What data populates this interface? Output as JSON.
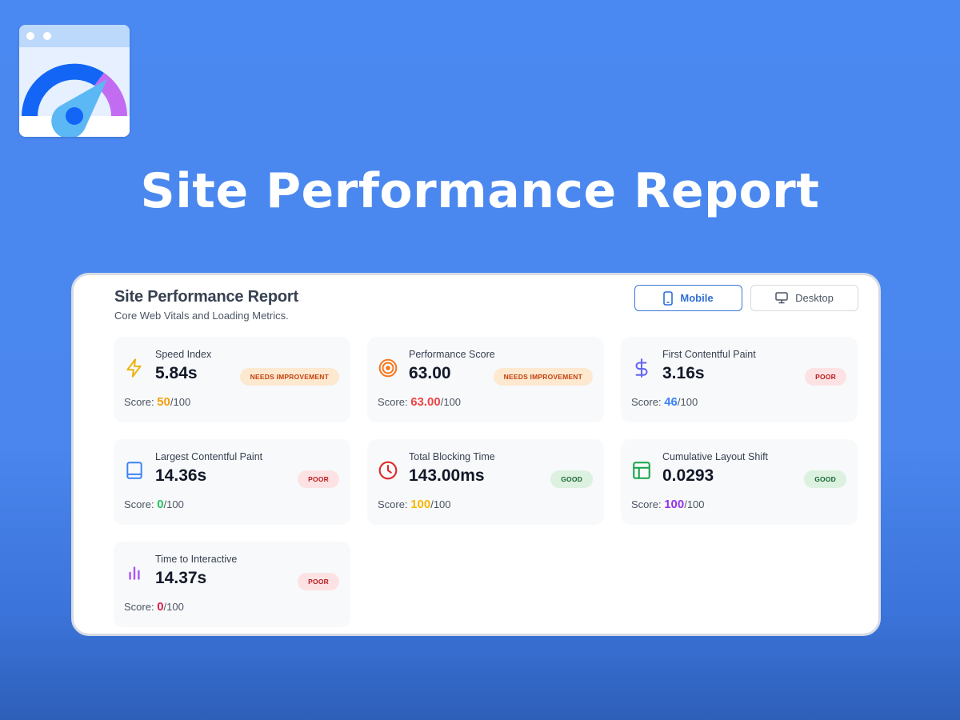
{
  "hero": {
    "title": "Site Performance Report"
  },
  "card": {
    "title": "Site Performance Report",
    "subtitle": "Core Web Vitals and Loading Metrics."
  },
  "toggles": {
    "mobile_label": "Mobile",
    "desktop_label": "Desktop",
    "selected": "Mobile"
  },
  "colors": {
    "accent": "#2f6fd6",
    "score_orange": "#f59e0b",
    "score_red": "#ef4444",
    "score_blue": "#3b82f6",
    "score_green": "#22c55e",
    "score_amber": "#f5b800",
    "score_purple": "#9333ea",
    "score_crimson": "#e11d48"
  },
  "metrics": [
    {
      "name": "Speed Index",
      "value": "5.84s",
      "status": "NEEDS IMPROVEMENT",
      "score_prefix": "Score: ",
      "score": "50",
      "score_max": "/100",
      "icon": "lightning-icon",
      "score_color": "#f59e0b"
    },
    {
      "name": "Performance Score",
      "value": "63.00",
      "status": "NEEDS IMPROVEMENT",
      "score_prefix": "Score: ",
      "score": "63.00",
      "score_max": "/100",
      "icon": "target-icon",
      "score_color": "#ef4444"
    },
    {
      "name": "First Contentful Paint",
      "value": "3.16s",
      "status": "POOR",
      "score_prefix": "Score: ",
      "score": "46",
      "score_max": "/100",
      "icon": "dollar-icon",
      "score_color": "#3b82f6"
    },
    {
      "name": "Largest Contentful Paint",
      "value": "14.36s",
      "status": "POOR",
      "score_prefix": "Score: ",
      "score": "0",
      "score_max": "/100",
      "icon": "book-icon",
      "score_color": "#22c55e"
    },
    {
      "name": "Total Blocking Time",
      "value": "143.00ms",
      "status": "GOOD",
      "score_prefix": "Score: ",
      "score": "100",
      "score_max": "/100",
      "icon": "clock-icon",
      "score_color": "#f5b800"
    },
    {
      "name": "Cumulative Layout Shift",
      "value": "0.0293",
      "status": "GOOD",
      "score_prefix": "Score: ",
      "score": "100",
      "score_max": "/100",
      "icon": "layout-icon",
      "score_color": "#9333ea"
    },
    {
      "name": "Time to Interactive",
      "value": "14.37s",
      "status": "POOR",
      "score_prefix": "Score: ",
      "score": "0",
      "score_max": "/100",
      "icon": "bar-chart-icon",
      "score_color": "#e11d48"
    }
  ]
}
